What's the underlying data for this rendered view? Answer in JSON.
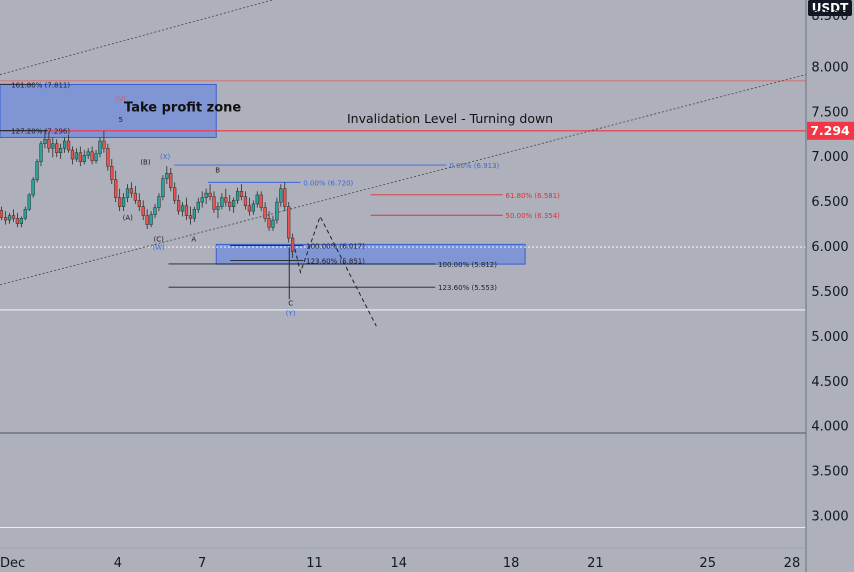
{
  "chart_data": {
    "type": "candlestick",
    "currency": "USDT",
    "price_axis": {
      "ticks": [
        "3.000",
        "3.500",
        "4.000",
        "4.500",
        "5.000",
        "5.500",
        "6.000",
        "6.500",
        "7.000",
        "7.500",
        "8.000"
      ],
      "tick_values": [
        3.0,
        3.5,
        4.0,
        4.5,
        5.0,
        5.5,
        6.0,
        6.5,
        7.0,
        7.5,
        8.0
      ],
      "top_partial_label": "8.500",
      "range": [
        2.65,
        8.75
      ]
    },
    "time_axis": {
      "labels": [
        "Dec",
        "4",
        "7",
        "11",
        "14",
        "18",
        "21",
        "25",
        "28"
      ],
      "positions": [
        -0.2,
        4,
        7,
        11,
        14,
        18,
        21,
        25,
        28
      ],
      "range": [
        -0.2,
        28.5
      ]
    },
    "current_price": {
      "label": "7.294",
      "value": 7.294,
      "color": "#f23645"
    },
    "zones": [
      {
        "name": "take-profit-zone",
        "label": "Take profit zone",
        "x0": -0.2,
        "x1": 7.5,
        "y0": 7.22,
        "y1": 7.81,
        "color": "#5b7ee8"
      },
      {
        "name": "support-zone",
        "label": "",
        "x0": 7.5,
        "x1": 18.5,
        "y0": 5.81,
        "y1": 6.03,
        "color": "#5b7ee8"
      }
    ],
    "annotations": {
      "invalidation": "Invalidation Level - Turning down"
    },
    "fib_levels": [
      {
        "label": "161.80% (7.811)",
        "value": 7.811,
        "x0": -0.2,
        "x1": 1.0,
        "color": "#222222",
        "label_x": 0.2,
        "label_side": "right"
      },
      {
        "label": "127.20% (7.296)",
        "value": 7.296,
        "x0": -0.2,
        "x1": 1.5,
        "color": "#222222",
        "label_x": 0.2,
        "label_side": "right"
      },
      {
        "label": "0.00% (6.913)",
        "value": 6.913,
        "x0": 6.0,
        "x1": 15.7,
        "color": "#3a66e0",
        "label_x": 15.8,
        "label_side": "right"
      },
      {
        "label": "0.00% (6.720)",
        "value": 6.72,
        "x0": 7.2,
        "x1": 10.5,
        "color": "#3a66e0",
        "label_x": 10.6,
        "label_side": "right"
      },
      {
        "label": "61.80% (6.581)",
        "value": 6.581,
        "x0": 13.0,
        "x1": 17.7,
        "color": "#e03030",
        "label_x": 17.8,
        "label_side": "right"
      },
      {
        "label": "50.00% (6.354)",
        "value": 6.354,
        "x0": 13.0,
        "x1": 17.7,
        "color": "#e03030",
        "label_x": 17.8,
        "label_side": "right"
      },
      {
        "label": "100.00% (6.017)",
        "value": 6.017,
        "x0": 8.0,
        "x1": 10.6,
        "color": "#222222",
        "label_x": 10.7,
        "label_side": "right"
      },
      {
        "label": "123.60% (5.851)",
        "value": 5.851,
        "x0": 8.0,
        "x1": 10.6,
        "color": "#222222",
        "label_x": 10.7,
        "label_side": "right"
      },
      {
        "label": "100.00% (5.812)",
        "value": 5.812,
        "x0": 5.8,
        "x1": 15.3,
        "color": "#222222",
        "label_x": 15.4,
        "label_side": "right"
      },
      {
        "label": "123.60% (5.553)",
        "value": 5.553,
        "x0": 5.8,
        "x1": 15.3,
        "color": "#222222",
        "label_x": 15.4,
        "label_side": "right"
      }
    ],
    "horizontal_lines": [
      {
        "value": 7.85,
        "color": "#e05a5a",
        "width": 0.8
      },
      {
        "value": 7.294,
        "color": "#f23645",
        "width": 1.2
      },
      {
        "value": 6.0,
        "color": "#ffffff",
        "width": 0.8,
        "dash": "2,2"
      },
      {
        "value": 5.3,
        "color": "#ffffff",
        "width": 0.8
      },
      {
        "value": 3.93,
        "color": "#2a3a4a",
        "width": 0.8
      },
      {
        "value": 2.88,
        "color": "#ffffff",
        "width": 0.8
      }
    ],
    "trend_lines": [
      {
        "x0": -0.2,
        "y0": 7.92,
        "x1": 9.5,
        "y1": 8.75,
        "color": "#444444",
        "dash": "2,2"
      },
      {
        "x0": -0.2,
        "y0": 5.58,
        "x1": 28.5,
        "y1": 7.92,
        "color": "#444444",
        "dash": "2,2"
      }
    ],
    "projection_path": [
      [
        10.3,
        5.98
      ],
      [
        10.5,
        5.72
      ],
      [
        11.2,
        6.34
      ],
      [
        13.2,
        5.12
      ]
    ],
    "wave_labels": [
      {
        "text": "(V)",
        "x": 4.1,
        "y": 7.62,
        "color": "#e05a5a"
      },
      {
        "text": "5",
        "x": 4.1,
        "y": 7.39,
        "color": "#222222"
      },
      {
        "text": "(B)",
        "x": 4.98,
        "y": 6.92,
        "color": "#222222"
      },
      {
        "text": "(X)",
        "x": 5.68,
        "y": 6.98,
        "color": "#3a66e0"
      },
      {
        "text": "B",
        "x": 7.55,
        "y": 6.83,
        "color": "#222222"
      },
      {
        "text": "(A)",
        "x": 4.35,
        "y": 6.3,
        "color": "#222222"
      },
      {
        "text": "(C)",
        "x": 5.45,
        "y": 6.06,
        "color": "#222222"
      },
      {
        "text": "(W)",
        "x": 5.45,
        "y": 5.97,
        "color": "#3a66e0"
      },
      {
        "text": "A",
        "x": 6.7,
        "y": 6.06,
        "color": "#222222"
      },
      {
        "text": "C",
        "x": 10.15,
        "y": 5.35,
        "color": "#222222"
      },
      {
        "text": "(Y)",
        "x": 10.15,
        "y": 5.24,
        "color": "#3a66e0"
      }
    ],
    "wick_C": {
      "x": 10.1,
      "high": 6.0,
      "low": 5.42
    },
    "candles": [
      [
        -0.15,
        6.41,
        6.45,
        6.3,
        6.33
      ],
      [
        0.0,
        6.33,
        6.4,
        6.25,
        6.3
      ],
      [
        0.14,
        6.3,
        6.38,
        6.26,
        6.35
      ],
      [
        0.28,
        6.35,
        6.42,
        6.28,
        6.32
      ],
      [
        0.42,
        6.32,
        6.38,
        6.22,
        6.26
      ],
      [
        0.56,
        6.26,
        6.34,
        6.22,
        6.32
      ],
      [
        0.7,
        6.32,
        6.45,
        6.3,
        6.42
      ],
      [
        0.84,
        6.42,
        6.6,
        6.4,
        6.58
      ],
      [
        0.98,
        6.58,
        6.78,
        6.55,
        6.75
      ],
      [
        1.12,
        6.75,
        6.98,
        6.72,
        6.95
      ],
      [
        1.26,
        6.95,
        7.18,
        6.9,
        7.15
      ],
      [
        1.4,
        7.15,
        7.3,
        7.1,
        7.2
      ],
      [
        1.54,
        7.2,
        7.28,
        7.05,
        7.1
      ],
      [
        1.68,
        7.1,
        7.22,
        7.0,
        7.15
      ],
      [
        1.82,
        7.15,
        7.2,
        7.0,
        7.05
      ],
      [
        1.96,
        7.05,
        7.15,
        6.98,
        7.1
      ],
      [
        2.1,
        7.1,
        7.22,
        7.05,
        7.18
      ],
      [
        2.24,
        7.18,
        7.25,
        7.05,
        7.08
      ],
      [
        2.38,
        7.08,
        7.12,
        6.92,
        6.98
      ],
      [
        2.52,
        6.98,
        7.1,
        6.95,
        7.05
      ],
      [
        2.66,
        7.05,
        7.12,
        6.9,
        6.95
      ],
      [
        2.8,
        6.95,
        7.08,
        6.92,
        7.02
      ],
      [
        2.94,
        7.02,
        7.1,
        6.98,
        7.06
      ],
      [
        3.08,
        7.06,
        7.12,
        6.92,
        6.96
      ],
      [
        3.22,
        6.96,
        7.08,
        6.93,
        7.04
      ],
      [
        3.36,
        7.04,
        7.22,
        7.0,
        7.18
      ],
      [
        3.5,
        7.18,
        7.29,
        7.05,
        7.1
      ],
      [
        3.64,
        7.1,
        7.15,
        6.85,
        6.9
      ],
      [
        3.78,
        6.9,
        6.98,
        6.7,
        6.75
      ],
      [
        3.92,
        6.75,
        6.85,
        6.5,
        6.55
      ],
      [
        4.06,
        6.55,
        6.65,
        6.4,
        6.45
      ],
      [
        4.2,
        6.45,
        6.6,
        6.4,
        6.55
      ],
      [
        4.34,
        6.55,
        6.7,
        6.5,
        6.65
      ],
      [
        4.48,
        6.65,
        6.72,
        6.55,
        6.6
      ],
      [
        4.62,
        6.6,
        6.68,
        6.48,
        6.52
      ],
      [
        4.76,
        6.52,
        6.6,
        6.4,
        6.45
      ],
      [
        4.9,
        6.45,
        6.52,
        6.3,
        6.35
      ],
      [
        5.04,
        6.35,
        6.42,
        6.2,
        6.25
      ],
      [
        5.18,
        6.25,
        6.4,
        6.22,
        6.36
      ],
      [
        5.32,
        6.36,
        6.48,
        6.32,
        6.44
      ],
      [
        5.46,
        6.44,
        6.6,
        6.4,
        6.56
      ],
      [
        5.6,
        6.56,
        6.8,
        6.52,
        6.76
      ],
      [
        5.74,
        6.76,
        6.9,
        6.7,
        6.82
      ],
      [
        5.88,
        6.82,
        6.88,
        6.62,
        6.66
      ],
      [
        6.02,
        6.66,
        6.72,
        6.48,
        6.52
      ],
      [
        6.16,
        6.52,
        6.58,
        6.36,
        6.4
      ],
      [
        6.3,
        6.4,
        6.5,
        6.34,
        6.46
      ],
      [
        6.44,
        6.46,
        6.55,
        6.3,
        6.35
      ],
      [
        6.58,
        6.35,
        6.45,
        6.25,
        6.32
      ],
      [
        6.72,
        6.32,
        6.45,
        6.28,
        6.42
      ],
      [
        6.86,
        6.42,
        6.55,
        6.38,
        6.5
      ],
      [
        7.0,
        6.5,
        6.62,
        6.44,
        6.55
      ],
      [
        7.14,
        6.55,
        6.65,
        6.48,
        6.6
      ],
      [
        7.28,
        6.6,
        6.7,
        6.52,
        6.56
      ],
      [
        7.42,
        6.56,
        6.62,
        6.38,
        6.42
      ],
      [
        7.56,
        6.42,
        6.5,
        6.32,
        6.45
      ],
      [
        7.7,
        6.45,
        6.6,
        6.42,
        6.55
      ],
      [
        7.84,
        6.55,
        6.65,
        6.45,
        6.5
      ],
      [
        7.98,
        6.5,
        6.58,
        6.4,
        6.45
      ],
      [
        8.12,
        6.45,
        6.55,
        6.38,
        6.52
      ],
      [
        8.26,
        6.52,
        6.66,
        6.48,
        6.62
      ],
      [
        8.4,
        6.62,
        6.7,
        6.52,
        6.56
      ],
      [
        8.54,
        6.56,
        6.62,
        6.42,
        6.46
      ],
      [
        8.68,
        6.46,
        6.55,
        6.35,
        6.4
      ],
      [
        8.82,
        6.4,
        6.52,
        6.36,
        6.48
      ],
      [
        8.96,
        6.48,
        6.62,
        6.44,
        6.58
      ],
      [
        9.1,
        6.58,
        6.62,
        6.4,
        6.44
      ],
      [
        9.24,
        6.44,
        6.5,
        6.28,
        6.32
      ],
      [
        9.38,
        6.32,
        6.4,
        6.18,
        6.22
      ],
      [
        9.52,
        6.22,
        6.35,
        6.18,
        6.3
      ],
      [
        9.66,
        6.3,
        6.55,
        6.26,
        6.5
      ],
      [
        9.8,
        6.5,
        6.7,
        6.45,
        6.65
      ],
      [
        9.94,
        6.65,
        6.72,
        6.4,
        6.45
      ],
      [
        10.08,
        6.45,
        6.5,
        6.05,
        6.1
      ],
      [
        10.22,
        6.1,
        6.15,
        5.88,
        5.95
      ]
    ]
  }
}
